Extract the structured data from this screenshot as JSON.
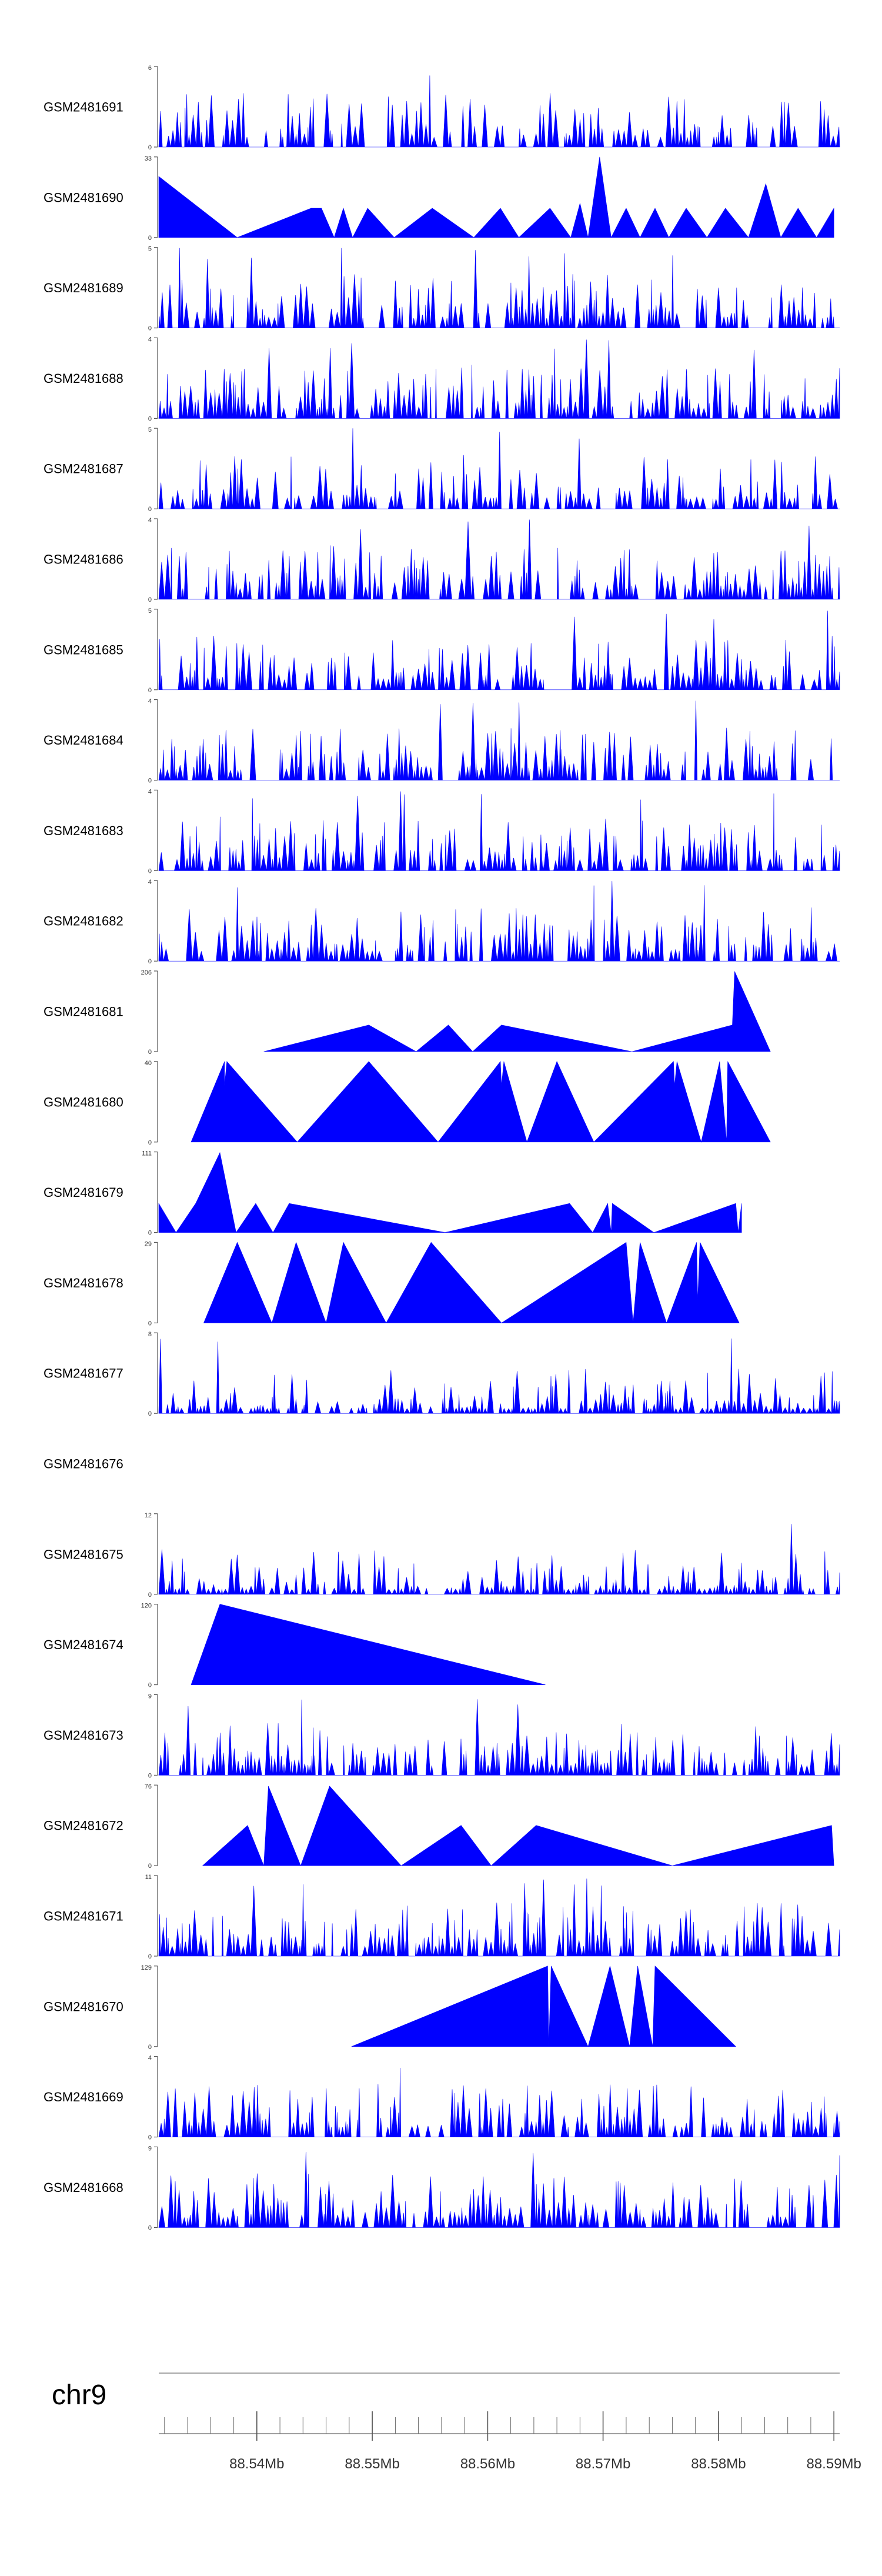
{
  "chart_data": {
    "type": "area",
    "track_color": "#0000ff",
    "chromosome": "chr9",
    "x_ticks": [
      "88.54Mb",
      "88.55Mb",
      "88.56Mb",
      "88.57Mb",
      "88.58Mb",
      "88.59Mb"
    ],
    "x_tick_values": [
      88.54,
      88.55,
      88.56,
      88.57,
      88.58,
      88.59
    ],
    "x_range": [
      88.5315,
      88.5905
    ],
    "tracks": [
      {
        "sample": "GSM2481691",
        "ymax": 6,
        "style": "dense"
      },
      {
        "sample": "GSM2481690",
        "ymax": 33,
        "style": "peaks",
        "points": [
          [
            88.5315,
            25
          ],
          [
            88.5383,
            0
          ],
          [
            88.5447,
            12
          ],
          [
            88.5456,
            12
          ],
          [
            88.5467,
            0
          ],
          [
            88.5475,
            12
          ],
          [
            88.5483,
            0
          ],
          [
            88.5496,
            12
          ],
          [
            88.5519,
            0
          ],
          [
            88.5552,
            12
          ],
          [
            88.5588,
            0
          ],
          [
            88.5611,
            12
          ],
          [
            88.5627,
            0
          ],
          [
            88.5654,
            12
          ],
          [
            88.5672,
            0
          ],
          [
            88.568,
            14
          ],
          [
            88.5687,
            0
          ],
          [
            88.5697,
            33
          ],
          [
            88.5707,
            0
          ],
          [
            88.572,
            12
          ],
          [
            88.5732,
            0
          ],
          [
            88.5745,
            12
          ],
          [
            88.5757,
            0
          ],
          [
            88.5772,
            12
          ],
          [
            88.579,
            0
          ],
          [
            88.5806,
            12
          ],
          [
            88.5826,
            0
          ],
          [
            88.5841,
            22
          ],
          [
            88.5854,
            0
          ],
          [
            88.5869,
            12
          ],
          [
            88.5885,
            0
          ],
          [
            88.59,
            12
          ]
        ]
      },
      {
        "sample": "GSM2481689",
        "ymax": 5,
        "style": "dense"
      },
      {
        "sample": "GSM2481688",
        "ymax": 4,
        "style": "dense"
      },
      {
        "sample": "GSM2481687",
        "ymax": 5,
        "style": "dense"
      },
      {
        "sample": "GSM2481686",
        "ymax": 4,
        "style": "dense"
      },
      {
        "sample": "GSM2481685",
        "ymax": 5,
        "style": "dense"
      },
      {
        "sample": "GSM2481684",
        "ymax": 4,
        "style": "dense"
      },
      {
        "sample": "GSM2481683",
        "ymax": 4,
        "style": "dense"
      },
      {
        "sample": "GSM2481682",
        "ymax": 4,
        "style": "dense"
      },
      {
        "sample": "GSM2481681",
        "ymax": 206,
        "style": "peaks",
        "points": [
          [
            88.5406,
            0
          ],
          [
            88.5497,
            68
          ],
          [
            88.5538,
            0
          ],
          [
            88.5566,
            68
          ],
          [
            88.5587,
            0
          ],
          [
            88.5612,
            68
          ],
          [
            88.5725,
            0
          ],
          [
            88.5812,
            68
          ],
          [
            88.5814,
            205
          ],
          [
            88.5845,
            0
          ]
        ]
      },
      {
        "sample": "GSM2481680",
        "ymax": 40,
        "style": "peaks",
        "points": [
          [
            88.5343,
            0
          ],
          [
            88.5372,
            40
          ],
          [
            88.5372,
            28
          ],
          [
            88.5374,
            40
          ],
          [
            88.5435,
            0
          ],
          [
            88.5497,
            40
          ],
          [
            88.5557,
            0
          ],
          [
            88.5611,
            40
          ],
          [
            88.5612,
            28
          ],
          [
            88.5614,
            40
          ],
          [
            88.5634,
            0
          ],
          [
            88.566,
            40
          ],
          [
            88.5692,
            0
          ],
          [
            88.5761,
            40
          ],
          [
            88.5762,
            28
          ],
          [
            88.5764,
            40
          ],
          [
            88.5785,
            0
          ],
          [
            88.5801,
            40
          ],
          [
            88.5807,
            0
          ],
          [
            88.5808,
            40
          ],
          [
            88.5845,
            0
          ]
        ]
      },
      {
        "sample": "GSM2481679",
        "ymax": 111,
        "style": "peaks",
        "points": [
          [
            88.5315,
            40
          ],
          [
            88.533,
            0
          ],
          [
            88.5347,
            40
          ],
          [
            88.5368,
            110
          ],
          [
            88.5382,
            0
          ],
          [
            88.5399,
            40
          ],
          [
            88.5414,
            0
          ],
          [
            88.5428,
            40
          ],
          [
            88.5563,
            0
          ],
          [
            88.5671,
            40
          ],
          [
            88.5691,
            0
          ],
          [
            88.5704,
            40
          ],
          [
            88.5707,
            0
          ],
          [
            88.5708,
            40
          ],
          [
            88.5744,
            0
          ],
          [
            88.5815,
            40
          ],
          [
            88.5817,
            0
          ],
          [
            88.582,
            40
          ]
        ]
      },
      {
        "sample": "GSM2481678",
        "ymax": 29,
        "style": "peaks",
        "points": [
          [
            88.5354,
            0
          ],
          [
            88.5383,
            29
          ],
          [
            88.5413,
            0
          ],
          [
            88.5434,
            29
          ],
          [
            88.546,
            0
          ],
          [
            88.5475,
            29
          ],
          [
            88.5512,
            0
          ],
          [
            88.5551,
            29
          ],
          [
            88.5612,
            0
          ],
          [
            88.572,
            29
          ],
          [
            88.5726,
            0
          ],
          [
            88.5732,
            29
          ],
          [
            88.5755,
            0
          ],
          [
            88.5781,
            29
          ],
          [
            88.5782,
            8
          ],
          [
            88.5784,
            29
          ],
          [
            88.5818,
            0
          ]
        ]
      },
      {
        "sample": "GSM2481677",
        "ymax": 8,
        "style": "sparse"
      },
      {
        "sample": "GSM2481676",
        "ymax": null,
        "style": "empty"
      },
      {
        "sample": "GSM2481675",
        "ymax": 12,
        "style": "sparse"
      },
      {
        "sample": "GSM2481674",
        "ymax": 120,
        "style": "peaks",
        "points": [
          [
            88.5343,
            0
          ],
          [
            88.5368,
            120
          ],
          [
            88.565,
            0
          ]
        ]
      },
      {
        "sample": "GSM2481673",
        "ymax": 9,
        "style": "dense"
      },
      {
        "sample": "GSM2481672",
        "ymax": 76,
        "style": "peaks",
        "points": [
          [
            88.5353,
            0
          ],
          [
            88.5392,
            38
          ],
          [
            88.5406,
            0
          ],
          [
            88.541,
            75
          ],
          [
            88.5438,
            0
          ],
          [
            88.5463,
            75
          ],
          [
            88.5525,
            0
          ],
          [
            88.5577,
            38
          ],
          [
            88.5603,
            0
          ],
          [
            88.5642,
            38
          ],
          [
            88.576,
            0
          ],
          [
            88.5898,
            38
          ],
          [
            88.59,
            0
          ]
        ]
      },
      {
        "sample": "GSM2481671",
        "ymax": 11,
        "style": "dense"
      },
      {
        "sample": "GSM2481670",
        "ymax": 129,
        "style": "peaks",
        "points": [
          [
            88.5482,
            0
          ],
          [
            88.5652,
            129
          ],
          [
            88.5653,
            0
          ],
          [
            88.5655,
            129
          ],
          [
            88.5687,
            0
          ],
          [
            88.5706,
            129
          ],
          [
            88.5723,
            0
          ],
          [
            88.573,
            129
          ],
          [
            88.5743,
            0
          ],
          [
            88.5745,
            129
          ],
          [
            88.5815,
            0
          ]
        ]
      },
      {
        "sample": "GSM2481669",
        "ymax": 4,
        "style": "dense"
      },
      {
        "sample": "GSM2481668",
        "ymax": 9,
        "style": "dense"
      }
    ]
  }
}
